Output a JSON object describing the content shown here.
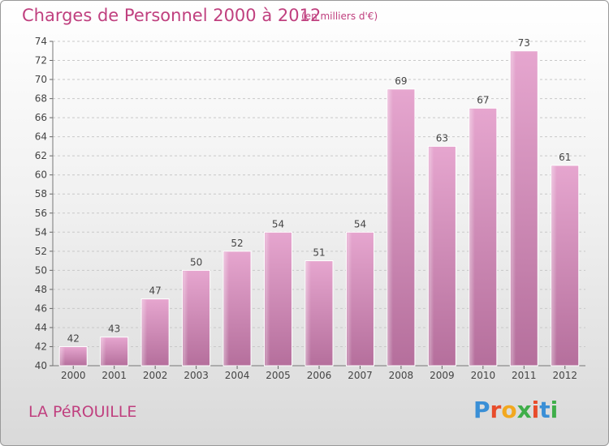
{
  "chart_data": {
    "type": "bar",
    "title": "Charges de Personnel 2000 à 2012",
    "subtitle": "(en milliers d'€)",
    "categories": [
      "2000",
      "2001",
      "2002",
      "2003",
      "2004",
      "2005",
      "2006",
      "2007",
      "2008",
      "2009",
      "2010",
      "2011",
      "2012"
    ],
    "values": [
      42,
      43,
      47,
      50,
      52,
      54,
      51,
      54,
      69,
      63,
      67,
      73,
      61
    ],
    "ylim": [
      40,
      74
    ],
    "yticks": [
      40,
      42,
      44,
      46,
      48,
      50,
      52,
      54,
      56,
      58,
      60,
      62,
      64,
      66,
      68,
      70,
      72,
      74
    ],
    "grid": true,
    "legend": "none",
    "bar_color": "#d98ab8"
  },
  "commune": "LA PéROUILLE",
  "brand": {
    "letters": [
      "P",
      "r",
      "o",
      "x",
      "i",
      "t",
      "i"
    ],
    "colors": [
      "#3a8fd6",
      "#e84c2b",
      "#f2a81f",
      "#3fae49",
      "#e84c2b",
      "#3a8fd6",
      "#3fae49"
    ]
  }
}
